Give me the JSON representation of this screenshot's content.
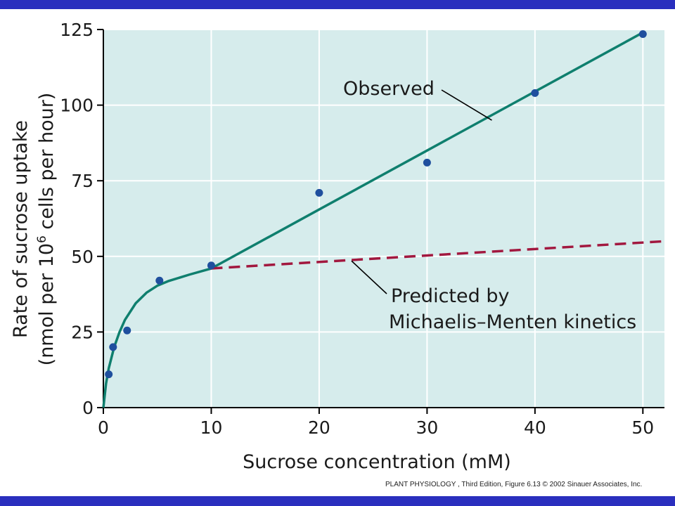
{
  "colors": {
    "frame": "#2a2fbe",
    "plot_background": "#d6ecec",
    "observed_line": "#0f7f6e",
    "predicted_line": "#a2183f",
    "points": "#1f4f9e"
  },
  "credit": "PLANT PHYSIOLOGY , Third Edition, Figure 6.13  © 2002 Sinauer Associates, Inc.",
  "chart_data": {
    "type": "line",
    "xlabel": "Sucrose concentration (mM)",
    "ylabel_line1": "Rate of sucrose uptake",
    "ylabel_line2_prefix": "(nmol per 10",
    "ylabel_line2_sup": "6",
    "ylabel_line2_suffix": " cells per hour)",
    "xlim": [
      0,
      52
    ],
    "ylim": [
      0,
      125
    ],
    "x_ticks": [
      0,
      10,
      20,
      30,
      40,
      50
    ],
    "y_ticks": [
      0,
      25,
      50,
      75,
      100,
      125
    ],
    "grid": true,
    "points": [
      {
        "x": 0.5,
        "y": 11
      },
      {
        "x": 0.9,
        "y": 20
      },
      {
        "x": 2.2,
        "y": 25.5
      },
      {
        "x": 5.2,
        "y": 42
      },
      {
        "x": 10,
        "y": 47
      },
      {
        "x": 20,
        "y": 71
      },
      {
        "x": 30,
        "y": 81
      },
      {
        "x": 40,
        "y": 104
      },
      {
        "x": 50,
        "y": 123.5
      }
    ],
    "series": [
      {
        "name": "Observed",
        "style": "solid",
        "x": [
          0,
          0.25,
          0.5,
          1,
          1.5,
          2,
          3,
          4,
          5,
          6,
          8,
          10,
          20,
          30,
          40,
          50
        ],
        "y": [
          0,
          8,
          13,
          20,
          25,
          29,
          34.5,
          38,
          40.3,
          41.8,
          44,
          46,
          65.5,
          85,
          104.5,
          124
        ]
      },
      {
        "name": "Predicted by Michaelis–Menten kinetics",
        "style": "dashed",
        "x": [
          10,
          52
        ],
        "y": [
          46,
          55
        ]
      }
    ],
    "annotations": [
      {
        "text": "Observed",
        "points_to": [
          36,
          95
        ]
      },
      {
        "text": "Predicted by",
        "text2": "Michaelis–Menten kinetics",
        "points_to": [
          23,
          48.5
        ]
      }
    ]
  }
}
